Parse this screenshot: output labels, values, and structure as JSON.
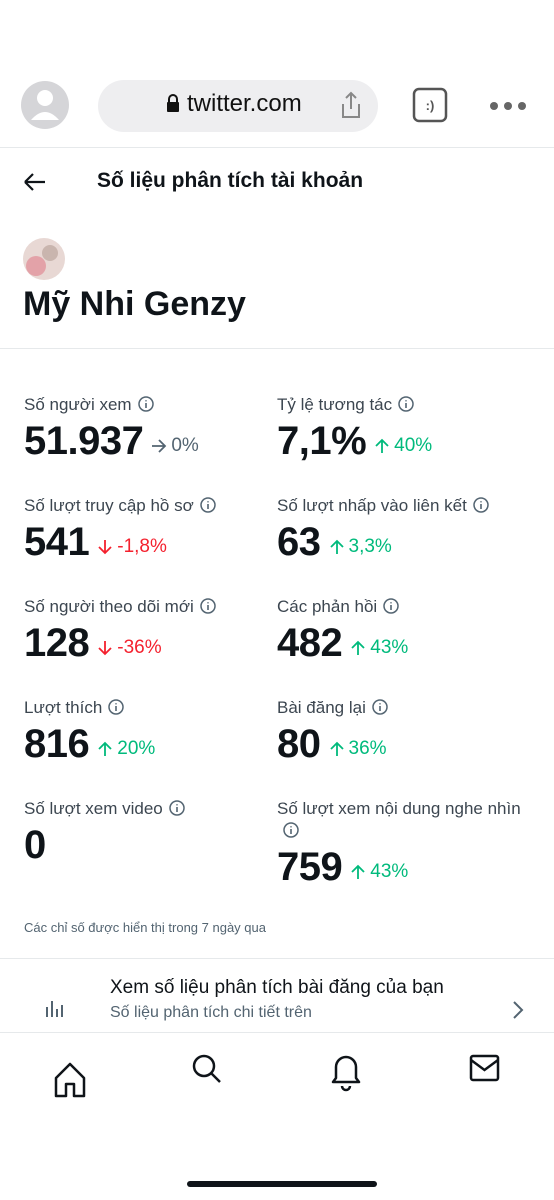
{
  "browser": {
    "url": "twitter.com"
  },
  "header": {
    "title": "Số liệu phân tích tài khoản"
  },
  "profile": {
    "name": "Mỹ Nhi Genzy"
  },
  "metrics": [
    {
      "label": "Số người xem",
      "value": "51.937",
      "change": "0%",
      "direction": "flat"
    },
    {
      "label": "Tỷ lệ tương tác",
      "value": "7,1%",
      "change": "40%",
      "direction": "up"
    },
    {
      "label": "Số lượt truy cập hồ sơ",
      "value": "541",
      "change": "-1,8%",
      "direction": "down"
    },
    {
      "label": "Số lượt nhấp vào liên kết",
      "value": "63",
      "change": "3,3%",
      "direction": "up"
    },
    {
      "label": "Số người theo dõi mới",
      "value": "128",
      "change": "-36%",
      "direction": "down"
    },
    {
      "label": "Các phản hồi",
      "value": "482",
      "change": "43%",
      "direction": "up"
    },
    {
      "label": "Lượt thích",
      "value": "816",
      "change": "20%",
      "direction": "up"
    },
    {
      "label": "Bài đăng lại",
      "value": "80",
      "change": "36%",
      "direction": "up"
    },
    {
      "label": "Số lượt xem video",
      "value": "0"
    },
    {
      "label": "Số lượt xem nội dung nghe nhìn",
      "value": "759",
      "change": "43%",
      "direction": "up"
    }
  ],
  "note": "Các chỉ số được hiển thị trong 7 ngày qua",
  "link": {
    "title": "Xem số liệu phân tích bài đăng của bạn",
    "subtitle": "Số liệu phân tích chi tiết trên"
  }
}
